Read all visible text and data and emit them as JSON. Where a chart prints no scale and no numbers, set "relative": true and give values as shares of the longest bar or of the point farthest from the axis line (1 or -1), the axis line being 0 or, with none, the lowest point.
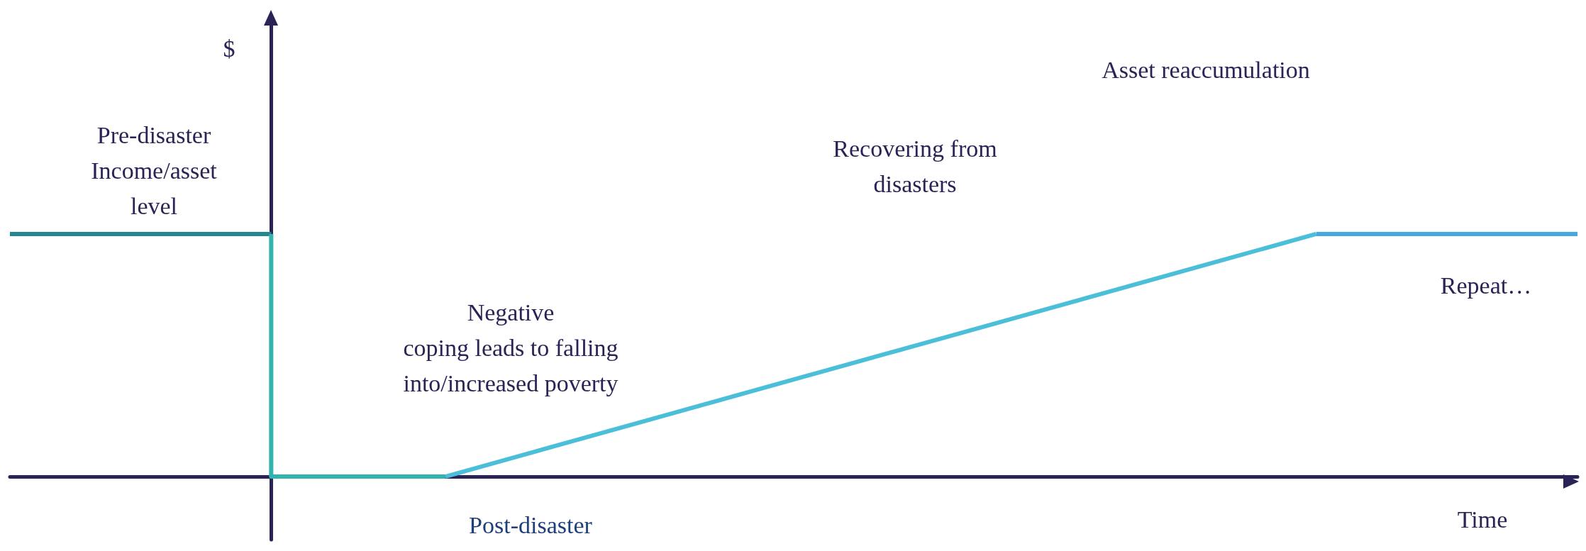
{
  "chart_data": {
    "type": "line",
    "relative": true,
    "xlabel": "Time",
    "grid": false,
    "marker": "none",
    "line_style": "solid",
    "categories": [
      null,
      null,
      null,
      null,
      null,
      null,
      null,
      null,
      null,
      null,
      null,
      null,
      null,
      null,
      null,
      null,
      null,
      null,
      null
    ],
    "series": [
      {
        "color": "#23878f",
        "values": [
          1,
          1,
          1,
          1,
          null,
          null,
          null,
          null,
          null,
          null,
          null,
          null,
          null,
          null,
          null,
          null,
          null,
          null,
          null
        ]
      },
      {
        "type": "step",
        "color": "#33b3b0",
        "values": [
          null,
          null,
          null,
          1,
          0,
          0,
          null,
          null,
          null,
          null,
          null,
          null,
          null,
          null,
          null,
          null,
          null,
          null,
          null
        ]
      },
      {
        "color": "#4bbfd9",
        "values": [
          null,
          null,
          null,
          null,
          null,
          0,
          0.1,
          0.2,
          0.3,
          0.4,
          0.5,
          0.6,
          0.7,
          0.8,
          0.9,
          1,
          null,
          null,
          null
        ]
      },
      {
        "color": "#45a9e0",
        "values": [
          null,
          null,
          null,
          null,
          null,
          null,
          null,
          null,
          null,
          null,
          null,
          null,
          null,
          null,
          null,
          1,
          1,
          1,
          1
        ]
      }
    ],
    "annotations": [
      "Pre-disaster\nIncome/asset\nlevel",
      "Negative\ncoping leads to falling\ninto/increased poverty",
      "Post-disaster",
      "Recovering from\ndisasters",
      "Asset reaccumulation",
      "Repeat…",
      "$"
    ]
  }
}
